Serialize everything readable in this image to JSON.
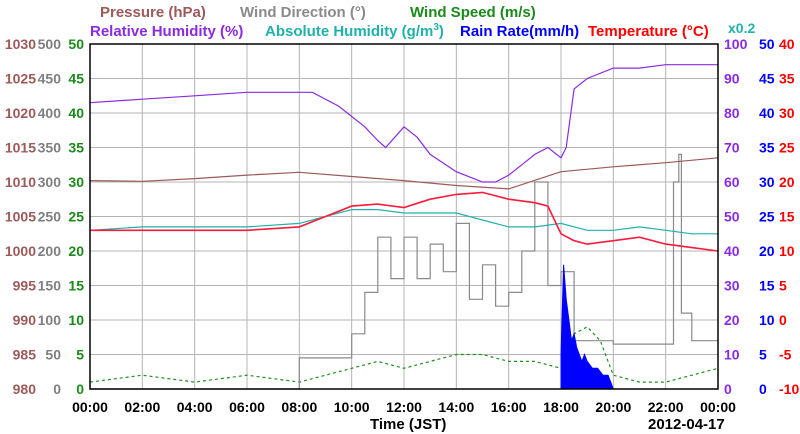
{
  "chart_data": {
    "type": "line",
    "xlabel": "Time (JST)",
    "date": "2012-04-17",
    "x_ticks": [
      "00:00",
      "02:00",
      "04:00",
      "06:00",
      "08:00",
      "10:00",
      "12:00",
      "14:00",
      "16:00",
      "18:00",
      "20:00",
      "22:00",
      "00:00"
    ],
    "xlim_hours": [
      0,
      24
    ],
    "grid": true,
    "legend_top": {
      "pressure": "Pressure (hPa)",
      "wind_dir": "Wind Direction (°)",
      "wind_speed": "Wind Speed (m/s)"
    },
    "legend_second": {
      "rh": "Relative Humidity (%)",
      "ah_prefix": "Absolute Humidity (g/m",
      "ah_sup": "3",
      "ah_suffix": ")",
      "rain": "Rain Rate(mm/h)",
      "temp": "Temperature (°C)",
      "scale_note": "x0.2"
    },
    "axes": {
      "pressure": {
        "label_color": "#9c5a5a",
        "ticks": [
          "1030",
          "1025",
          "1020",
          "1015",
          "1010",
          "1005",
          "1000",
          "995",
          "990",
          "985",
          "980"
        ],
        "ylim": [
          980,
          1030
        ]
      },
      "wind_direction": {
        "label_color": "#7f7f7f",
        "ticks": [
          "500",
          "450",
          "400",
          "350",
          "300",
          "250",
          "200",
          "150",
          "100",
          "50",
          "0"
        ],
        "ylim": [
          0,
          500
        ]
      },
      "wind_speed": {
        "label_color": "#1a8a1a",
        "ticks": [
          "50",
          "45",
          "40",
          "35",
          "30",
          "25",
          "20",
          "15",
          "10",
          "5",
          "0"
        ],
        "ylim": [
          0,
          50
        ]
      },
      "relative_humidity": {
        "label_color": "#8a2be2",
        "ticks": [
          "100",
          "90",
          "80",
          "70",
          "60",
          "50",
          "40",
          "30",
          "20",
          "10",
          "0"
        ],
        "ylim": [
          0,
          100
        ]
      },
      "rain_rate": {
        "label_color": "#0000ff",
        "ticks": [
          "50",
          "45",
          "40",
          "35",
          "30",
          "25",
          "20",
          "15",
          "10",
          "5",
          "0"
        ],
        "ylim": [
          0,
          50
        ]
      },
      "temperature": {
        "label_color": "#ff0000",
        "ticks": [
          "40",
          "35",
          "30",
          "25",
          "20",
          "15",
          "10",
          "5",
          "0",
          "-5",
          "-10"
        ],
        "ylim": [
          -10,
          40
        ]
      }
    },
    "colors": {
      "pressure": "#9c5a5a",
      "wind_dir": "#8a8a8a",
      "wind_speed": "#1f8f1f",
      "rh": "#8a2be2",
      "ah": "#20b2aa",
      "rain": "#0000ff",
      "temp": "#ff1a3c",
      "grid": "#b4b4b4"
    },
    "series": [
      {
        "name": "Relative Humidity (%)",
        "axis": "relative_humidity",
        "x": [
          0,
          2,
          4,
          6,
          7.5,
          8.5,
          9.5,
          10.5,
          11,
          11.3,
          12,
          12.5,
          13,
          14,
          15,
          15.5,
          16,
          16.5,
          17,
          17.5,
          18,
          18.2,
          18.5,
          19,
          20,
          21,
          22,
          23,
          24
        ],
        "values": [
          83,
          84,
          85,
          86,
          86,
          86,
          82,
          76,
          72,
          70,
          76,
          73,
          68,
          63,
          60,
          60,
          62,
          65,
          68,
          70,
          67,
          70,
          87,
          90,
          93,
          93,
          94,
          94,
          94
        ]
      },
      {
        "name": "Pressure (hPa)",
        "axis": "pressure",
        "x": [
          0,
          2,
          4,
          6,
          8,
          10,
          12,
          14,
          16,
          18,
          20,
          22,
          24
        ],
        "values": [
          1010.2,
          1010.1,
          1010.5,
          1011.0,
          1011.4,
          1010.8,
          1010.2,
          1009.5,
          1009.0,
          1011.5,
          1012.2,
          1012.8,
          1013.5
        ]
      },
      {
        "name": "Absolute Humidity (g/m3) x0.2",
        "axis": "relative_humidity",
        "x": [
          0,
          2,
          4,
          6,
          8,
          9,
          10,
          11,
          12,
          13,
          14,
          15,
          16,
          17,
          18,
          19,
          20,
          21,
          22,
          23,
          24
        ],
        "values": [
          46,
          47,
          47,
          47,
          48,
          50,
          52,
          52,
          51,
          51,
          51,
          49,
          47,
          47,
          48,
          46,
          46,
          47,
          46,
          45,
          45
        ]
      },
      {
        "name": "Temperature (°C)",
        "axis": "temperature",
        "x": [
          0,
          2,
          4,
          6,
          8,
          9,
          10,
          11,
          12,
          13,
          14,
          15,
          16,
          17,
          17.5,
          18,
          18.5,
          19,
          20,
          21,
          22,
          23,
          24
        ],
        "values": [
          13,
          13,
          13,
          13,
          13.5,
          15,
          16.5,
          16.8,
          16.3,
          17.5,
          18.2,
          18.5,
          17.5,
          17,
          16.5,
          12.5,
          11.5,
          11,
          11.5,
          12,
          11,
          10.5,
          10
        ]
      },
      {
        "name": "Wind Direction (°)",
        "axis": "wind_direction",
        "x": [
          0,
          7.9,
          8,
          9.9,
          10,
          10.4,
          10.5,
          11,
          11.5,
          12,
          12.5,
          13,
          13.5,
          14,
          14.5,
          15,
          15.5,
          16,
          16.5,
          17,
          17.5,
          18,
          18.5,
          20,
          22,
          22.3,
          22.5,
          22.6,
          23,
          23.4,
          24
        ],
        "values": [
          0,
          0,
          45,
          45,
          80,
          80,
          140,
          220,
          160,
          220,
          160,
          210,
          170,
          240,
          130,
          180,
          120,
          140,
          200,
          300,
          150,
          170,
          70,
          65,
          65,
          300,
          340,
          110,
          70,
          70,
          70
        ]
      },
      {
        "name": "Wind Speed (m/s)",
        "axis": "wind_speed",
        "x": [
          0,
          2,
          4,
          6,
          8,
          9,
          10,
          11,
          12,
          13,
          14,
          15,
          16,
          17,
          18,
          18.5,
          19,
          19.5,
          20,
          21,
          22,
          23,
          24
        ],
        "values": [
          1,
          2,
          1,
          2,
          1,
          2,
          3,
          4,
          3,
          4,
          5,
          5,
          4,
          4,
          3,
          8,
          9,
          7,
          2,
          1,
          1,
          2,
          3
        ]
      },
      {
        "name": "Rain Rate(mm/h)",
        "axis": "rain_rate",
        "x": [
          18,
          18.1,
          18.2,
          18.3,
          18.4,
          18.5,
          18.6,
          18.7,
          18.8,
          18.9,
          19,
          19.2,
          19.4,
          19.6,
          19.8,
          20
        ],
        "values": [
          5,
          18,
          13,
          10,
          7,
          8,
          6,
          5,
          4,
          5,
          4,
          3,
          3,
          2,
          2,
          0
        ]
      }
    ]
  }
}
